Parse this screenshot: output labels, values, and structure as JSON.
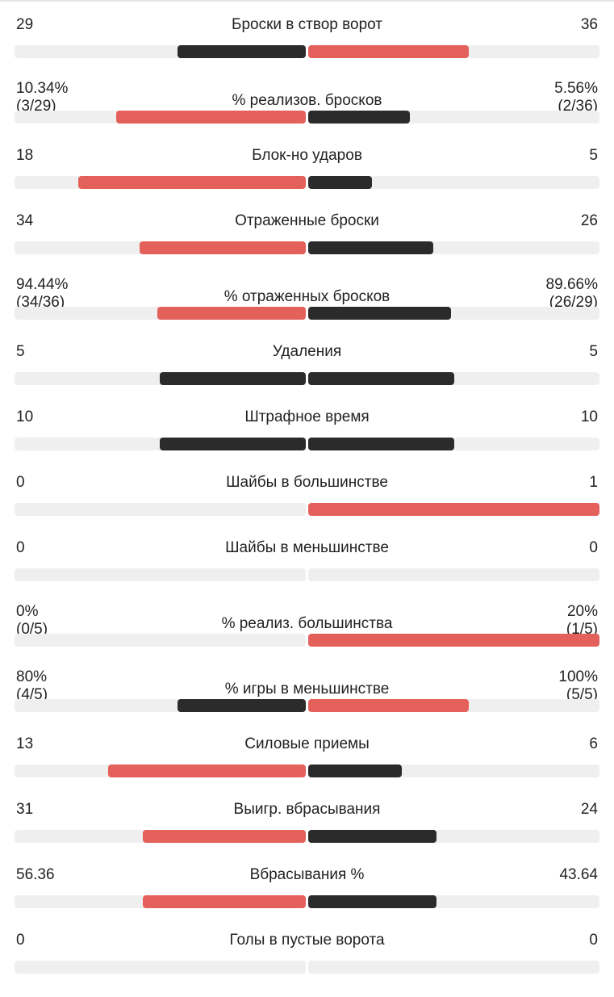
{
  "colors": {
    "red": "#e4605b",
    "dark": "#2b2b2b",
    "track": "#efefef"
  },
  "stats": [
    {
      "label": "Броски в створ ворот",
      "left": "29",
      "right": "36",
      "left_fill": 0.44,
      "right_fill": 0.55,
      "left_color": "dark",
      "right_color": "red"
    },
    {
      "label": "% реализов. бросков",
      "left": "10.34%",
      "left_sub": "(3/29)",
      "right": "5.56%",
      "right_sub": "(2/36)",
      "left_fill": 0.65,
      "right_fill": 0.35,
      "left_color": "red",
      "right_color": "dark"
    },
    {
      "label": "Блок-но ударов",
      "left": "18",
      "right": "5",
      "left_fill": 0.78,
      "right_fill": 0.22,
      "left_color": "red",
      "right_color": "dark"
    },
    {
      "label": "Отраженные броски",
      "left": "34",
      "right": "26",
      "left_fill": 0.57,
      "right_fill": 0.43,
      "left_color": "red",
      "right_color": "dark"
    },
    {
      "label": "% отраженных бросков",
      "left": "94.44%",
      "left_sub": "(34/36)",
      "right": "89.66%",
      "right_sub": "(26/29)",
      "left_fill": 0.51,
      "right_fill": 0.49,
      "left_color": "red",
      "right_color": "dark"
    },
    {
      "label": "Удаления",
      "left": "5",
      "right": "5",
      "left_fill": 0.5,
      "right_fill": 0.5,
      "left_color": "dark",
      "right_color": "dark"
    },
    {
      "label": "Штрафное время",
      "left": "10",
      "right": "10",
      "left_fill": 0.5,
      "right_fill": 0.5,
      "left_color": "dark",
      "right_color": "dark"
    },
    {
      "label": "Шайбы в большинстве",
      "left": "0",
      "right": "1",
      "left_fill": 0,
      "right_fill": 1,
      "left_color": "dark",
      "right_color": "red"
    },
    {
      "label": "Шайбы в меньшинстве",
      "left": "0",
      "right": "0",
      "left_fill": 0,
      "right_fill": 0,
      "left_color": "dark",
      "right_color": "dark"
    },
    {
      "label": "% реализ. большинства",
      "left": "0%",
      "left_sub": "(0/5)",
      "right": "20%",
      "right_sub": "(1/5)",
      "left_fill": 0,
      "right_fill": 1,
      "left_color": "dark",
      "right_color": "red"
    },
    {
      "label": "% игры в меньшинстве",
      "left": "80%",
      "left_sub": "(4/5)",
      "right": "100%",
      "right_sub": "(5/5)",
      "left_fill": 0.44,
      "right_fill": 0.55,
      "left_color": "dark",
      "right_color": "red"
    },
    {
      "label": "Силовые приемы",
      "left": "13",
      "right": "6",
      "left_fill": 0.68,
      "right_fill": 0.32,
      "left_color": "red",
      "right_color": "dark"
    },
    {
      "label": "Выигр. вбрасывания",
      "left": "31",
      "right": "24",
      "left_fill": 0.56,
      "right_fill": 0.44,
      "left_color": "red",
      "right_color": "dark"
    },
    {
      "label": "Вбрасывания %",
      "left": "56.36",
      "right": "43.64",
      "left_fill": 0.56,
      "right_fill": 0.44,
      "left_color": "red",
      "right_color": "dark"
    },
    {
      "label": "Голы в пустые ворота",
      "left": "0",
      "right": "0",
      "left_fill": 0,
      "right_fill": 0,
      "left_color": "dark",
      "right_color": "dark"
    }
  ]
}
